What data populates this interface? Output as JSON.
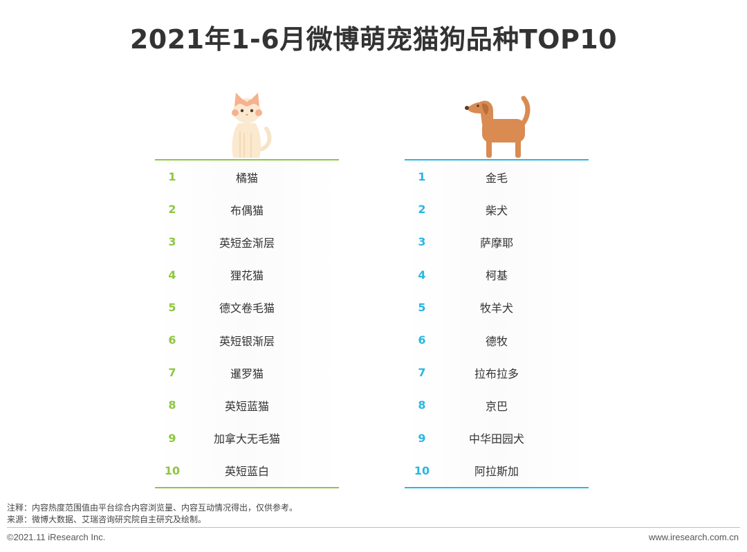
{
  "title": "2021年1-6月微博萌宠猫狗品种TOP10",
  "colors": {
    "cat_accent": "#8dc63f",
    "dog_accent": "#29b6e4",
    "title": "#333333"
  },
  "cats": {
    "icon": "cat-icon",
    "items": [
      {
        "rank": "1",
        "name": "橘猫"
      },
      {
        "rank": "2",
        "name": "布偶猫"
      },
      {
        "rank": "3",
        "name": "英短金渐层"
      },
      {
        "rank": "4",
        "name": "狸花猫"
      },
      {
        "rank": "5",
        "name": "德文卷毛猫"
      },
      {
        "rank": "6",
        "name": "英短银渐层"
      },
      {
        "rank": "7",
        "name": "暹罗猫"
      },
      {
        "rank": "8",
        "name": "英短蓝猫"
      },
      {
        "rank": "9",
        "name": "加拿大无毛猫"
      },
      {
        "rank": "10",
        "name": "英短蓝白"
      }
    ]
  },
  "dogs": {
    "icon": "dog-icon",
    "items": [
      {
        "rank": "1",
        "name": "金毛"
      },
      {
        "rank": "2",
        "name": "柴犬"
      },
      {
        "rank": "3",
        "name": "萨摩耶"
      },
      {
        "rank": "4",
        "name": "柯基"
      },
      {
        "rank": "5",
        "name": "牧羊犬"
      },
      {
        "rank": "6",
        "name": "德牧"
      },
      {
        "rank": "7",
        "name": "拉布拉多"
      },
      {
        "rank": "8",
        "name": "京巴"
      },
      {
        "rank": "9",
        "name": "中华田园犬"
      },
      {
        "rank": "10",
        "name": "阿拉斯加"
      }
    ]
  },
  "notes": {
    "note": "注释：内容热度范围值由平台综合内容浏览量、内容互动情况得出，仅供参考。",
    "source": "来源：微博大数据、艾瑞咨询研究院自主研究及绘制。"
  },
  "footer": {
    "copyright": "©2021.11 iResearch Inc.",
    "website": "www.iresearch.com.cn"
  }
}
